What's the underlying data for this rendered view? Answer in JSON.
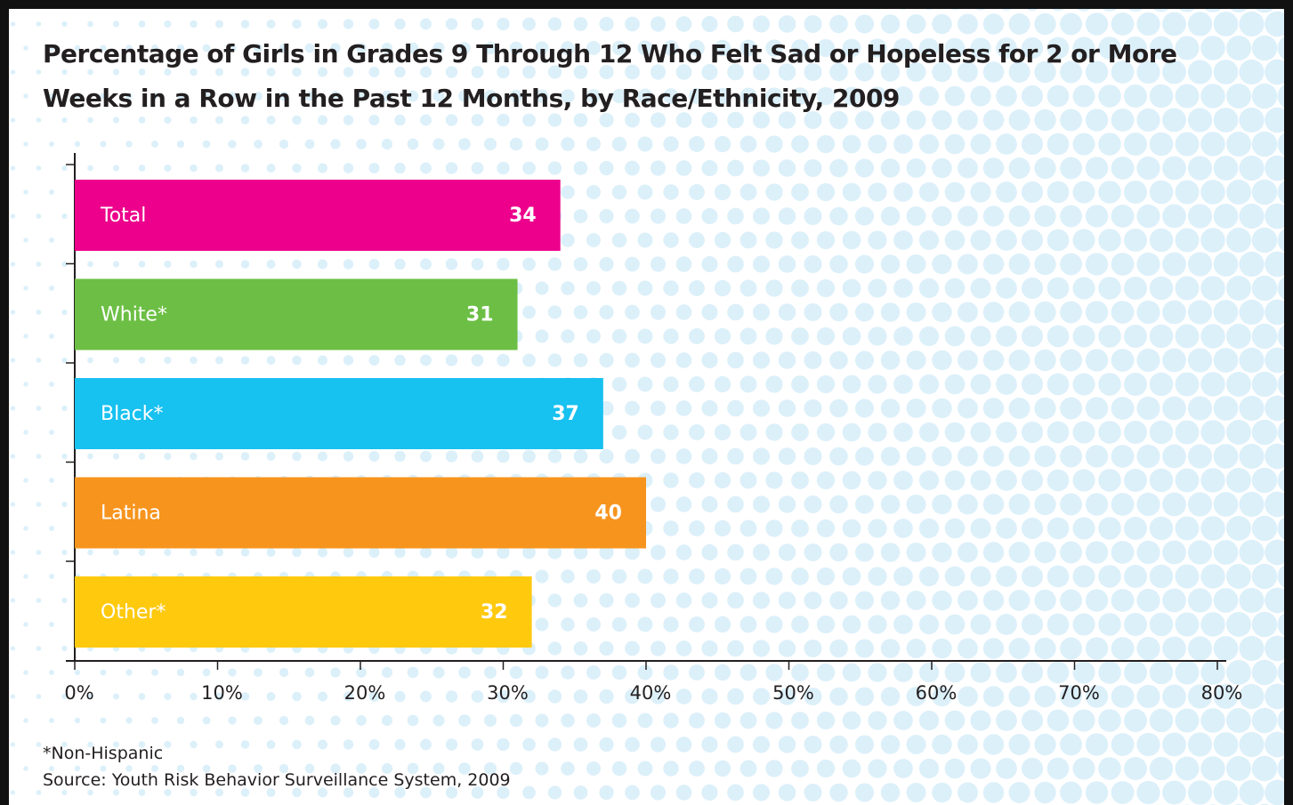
{
  "chart_data": {
    "type": "bar",
    "orientation": "horizontal",
    "title": "Percentage of Girls in Grades 9 Through 12 Who Felt Sad or Hopeless for 2 or More Weeks in a Row in the Past 12 Months, by Race/Ethnicity, 2009",
    "categories": [
      "Total",
      "White*",
      "Black*",
      "Latina",
      "Other*"
    ],
    "values": [
      34,
      31,
      37,
      40,
      32
    ],
    "colors": [
      "#ec008c",
      "#6cbf44",
      "#17c1f0",
      "#f7941d",
      "#ffc90e"
    ],
    "xlim": [
      0,
      80
    ],
    "xticks": [
      {
        "value": 0,
        "label": "0%"
      },
      {
        "value": 10,
        "label": "10%"
      },
      {
        "value": 20,
        "label": "20%"
      },
      {
        "value": 30,
        "label": "30%"
      },
      {
        "value": 40,
        "label": "40%"
      },
      {
        "value": 50,
        "label": "50%"
      },
      {
        "value": 60,
        "label": "60%"
      },
      {
        "value": 70,
        "label": "70%"
      },
      {
        "value": 80,
        "label": "80%"
      }
    ],
    "notes": [
      "*Non-Hispanic",
      "Source: Youth Risk Behavior Surveillance System, 2009"
    ]
  }
}
